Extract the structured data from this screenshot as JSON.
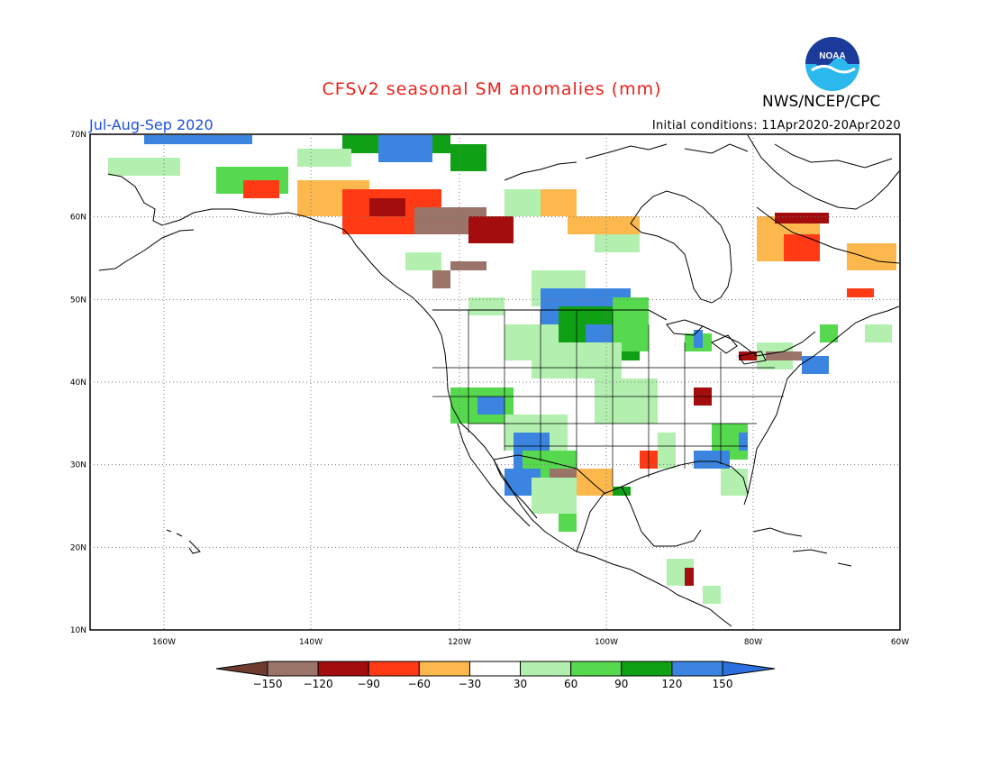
{
  "title": "CFSv2 seasonal SM anomalies (mm)",
  "agency": "NWS/NCEP/CPC",
  "logo_text": "NOAA",
  "season": "Jul-Aug-Sep 2020",
  "initial_conditions": "Initial conditions: 11Apr2020-20Apr2020",
  "map": {
    "lat_ticks": [
      "70N",
      "60N",
      "50N",
      "40N",
      "30N",
      "20N",
      "10N"
    ],
    "lon_ticks": [
      "160W",
      "140W",
      "120W",
      "100W",
      "80W",
      "60W"
    ],
    "grid": true
  },
  "colorbar": {
    "labels": [
      "-150",
      "-120",
      "-90",
      "-60",
      "-30",
      "30",
      "60",
      "90",
      "120",
      "150"
    ],
    "colors": [
      "#6e3c2e",
      "#9a7469",
      "#a30d0d",
      "#ff3a14",
      "#fdb84d",
      "#ffffff",
      "#b3f0b0",
      "#56d94e",
      "#10a016",
      "#3b85e0",
      "#2c6fe0"
    ]
  },
  "colors": {
    "title": "#e8221b",
    "season": "#1f4fe0",
    "wet_strong": "#3b85e0",
    "wet": "#10a016",
    "wet_mod": "#56d94e",
    "wet_light": "#b3f0b0",
    "dry_light": "#fdb84d",
    "dry_mod": "#ff3a14",
    "dry": "#a30d0d",
    "dry_strong": "#9a7469",
    "dry_extreme": "#6e3c2e"
  }
}
